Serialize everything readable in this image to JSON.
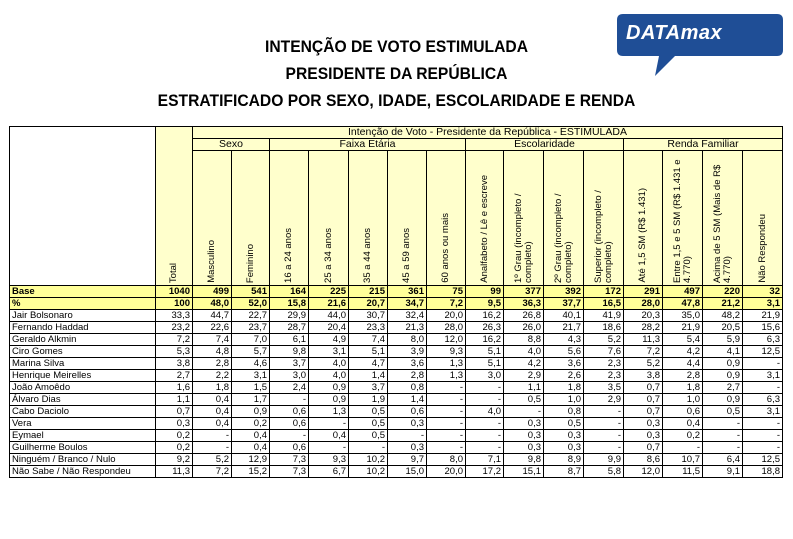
{
  "title_lines": [
    "INTENÇÃO DE VOTO ESTIMULADA",
    "PRESIDENTE DA REPÚBLICA",
    "ESTRATIFICADO POR SEXO, IDADE, ESCOLARIDADE E RENDA"
  ],
  "logo": {
    "text": "DATAmax",
    "color": "#1f4e96"
  },
  "table": {
    "main_header": "Intenção de Voto - Presidente da República - ESTIMULADA",
    "groups": [
      "Sexo",
      "Faixa Etária",
      "Escolaridade",
      "Renda Familiar"
    ],
    "columns": [
      "Total",
      "Masculino",
      "Feminino",
      "16 a 24 anos",
      "25 a 34 anos",
      "35 a 44 anos",
      "45 a 59 anos",
      "60 anos ou mais",
      "Analfabeto / Lê e escreve",
      "1º Grau (incompleto / completo)",
      "2º Grau (incompleto / completo)",
      "Superior (incompleto / completo)",
      "Até 1,5 SM (R$ 1.431)",
      "Entre 1,5 e 5 SM (R$ 1.431 e 4.770)",
      "Acima de 5 SM (Mais de R$ 4.770)",
      "Não Respondeu"
    ],
    "rows": [
      {
        "label": "Base",
        "highlight": true,
        "values": [
          "1040",
          "499",
          "541",
          "164",
          "225",
          "215",
          "361",
          "75",
          "99",
          "377",
          "392",
          "172",
          "291",
          "497",
          "220",
          "32"
        ]
      },
      {
        "label": "%",
        "highlight": true,
        "values": [
          "100",
          "48,0",
          "52,0",
          "15,8",
          "21,6",
          "20,7",
          "34,7",
          "7,2",
          "9,5",
          "36,3",
          "37,7",
          "16,5",
          "28,0",
          "47,8",
          "21,2",
          "3,1"
        ]
      },
      {
        "label": "Jair Bolsonaro",
        "highlight": false,
        "values": [
          "33,3",
          "44,7",
          "22,7",
          "29,9",
          "44,0",
          "30,7",
          "32,4",
          "20,0",
          "16,2",
          "26,8",
          "40,1",
          "41,9",
          "20,3",
          "35,0",
          "48,2",
          "21,9"
        ]
      },
      {
        "label": "Fernando Haddad",
        "highlight": false,
        "values": [
          "23,2",
          "22,6",
          "23,7",
          "28,7",
          "20,4",
          "23,3",
          "21,3",
          "28,0",
          "26,3",
          "26,0",
          "21,7",
          "18,6",
          "28,2",
          "21,9",
          "20,5",
          "15,6"
        ]
      },
      {
        "label": "Geraldo Alkmin",
        "highlight": false,
        "values": [
          "7,2",
          "7,4",
          "7,0",
          "6,1",
          "4,9",
          "7,4",
          "8,0",
          "12,0",
          "16,2",
          "8,8",
          "4,3",
          "5,2",
          "11,3",
          "5,4",
          "5,9",
          "6,3"
        ]
      },
      {
        "label": "Ciro Gomes",
        "highlight": false,
        "values": [
          "5,3",
          "4,8",
          "5,7",
          "9,8",
          "3,1",
          "5,1",
          "3,9",
          "9,3",
          "5,1",
          "4,0",
          "5,6",
          "7,6",
          "7,2",
          "4,2",
          "4,1",
          "12,5"
        ]
      },
      {
        "label": "Marina Silva",
        "highlight": false,
        "values": [
          "3,8",
          "2,8",
          "4,6",
          "3,7",
          "4,0",
          "4,7",
          "3,6",
          "1,3",
          "5,1",
          "4,2",
          "3,6",
          "2,3",
          "5,2",
          "4,4",
          "0,9",
          "-"
        ]
      },
      {
        "label": "Henrique Meirelles",
        "highlight": false,
        "values": [
          "2,7",
          "2,2",
          "3,1",
          "3,0",
          "4,0",
          "1,4",
          "2,8",
          "1,3",
          "3,0",
          "2,9",
          "2,6",
          "2,3",
          "3,8",
          "2,8",
          "0,9",
          "3,1"
        ]
      },
      {
        "label": "João Amoêdo",
        "highlight": false,
        "values": [
          "1,6",
          "1,8",
          "1,5",
          "2,4",
          "0,9",
          "3,7",
          "0,8",
          "-",
          "-",
          "1,1",
          "1,8",
          "3,5",
          "0,7",
          "1,8",
          "2,7",
          "-"
        ]
      },
      {
        "label": "Álvaro Dias",
        "highlight": false,
        "values": [
          "1,1",
          "0,4",
          "1,7",
          "-",
          "0,9",
          "1,9",
          "1,4",
          "-",
          "-",
          "0,5",
          "1,0",
          "2,9",
          "0,7",
          "1,0",
          "0,9",
          "6,3"
        ]
      },
      {
        "label": "Cabo Daciolo",
        "highlight": false,
        "values": [
          "0,7",
          "0,4",
          "0,9",
          "0,6",
          "1,3",
          "0,5",
          "0,6",
          "-",
          "4,0",
          "-",
          "0,8",
          "-",
          "0,7",
          "0,6",
          "0,5",
          "3,1"
        ]
      },
      {
        "label": "Vera",
        "highlight": false,
        "values": [
          "0,3",
          "0,4",
          "0,2",
          "0,6",
          "-",
          "0,5",
          "0,3",
          "-",
          "-",
          "0,3",
          "0,5",
          "-",
          "0,3",
          "0,4",
          "-",
          "-"
        ]
      },
      {
        "label": "Eymael",
        "highlight": false,
        "values": [
          "0,2",
          "-",
          "0,4",
          "-",
          "0,4",
          "0,5",
          "-",
          "-",
          "-",
          "0,3",
          "0,3",
          "-",
          "0,3",
          "0,2",
          "-",
          "-"
        ]
      },
      {
        "label": "Guilherme Boulos",
        "highlight": false,
        "values": [
          "0,2",
          "-",
          "0,4",
          "0,6",
          "-",
          "-",
          "0,3",
          "-",
          "-",
          "0,3",
          "0,3",
          "-",
          "0,7",
          "-",
          "-",
          "-"
        ]
      },
      {
        "label": "Ninguém / Branco / Nulo",
        "highlight": false,
        "values": [
          "9,2",
          "5,2",
          "12,9",
          "7,3",
          "9,3",
          "10,2",
          "9,7",
          "8,0",
          "7,1",
          "9,8",
          "8,9",
          "9,9",
          "8,6",
          "10,7",
          "6,4",
          "12,5"
        ]
      },
      {
        "label": "Não Sabe / Não Respondeu",
        "highlight": false,
        "values": [
          "11,3",
          "7,2",
          "15,2",
          "7,3",
          "6,7",
          "10,2",
          "15,0",
          "20,0",
          "17,2",
          "15,1",
          "8,7",
          "5,8",
          "12,0",
          "11,5",
          "9,1",
          "18,8"
        ]
      }
    ]
  }
}
